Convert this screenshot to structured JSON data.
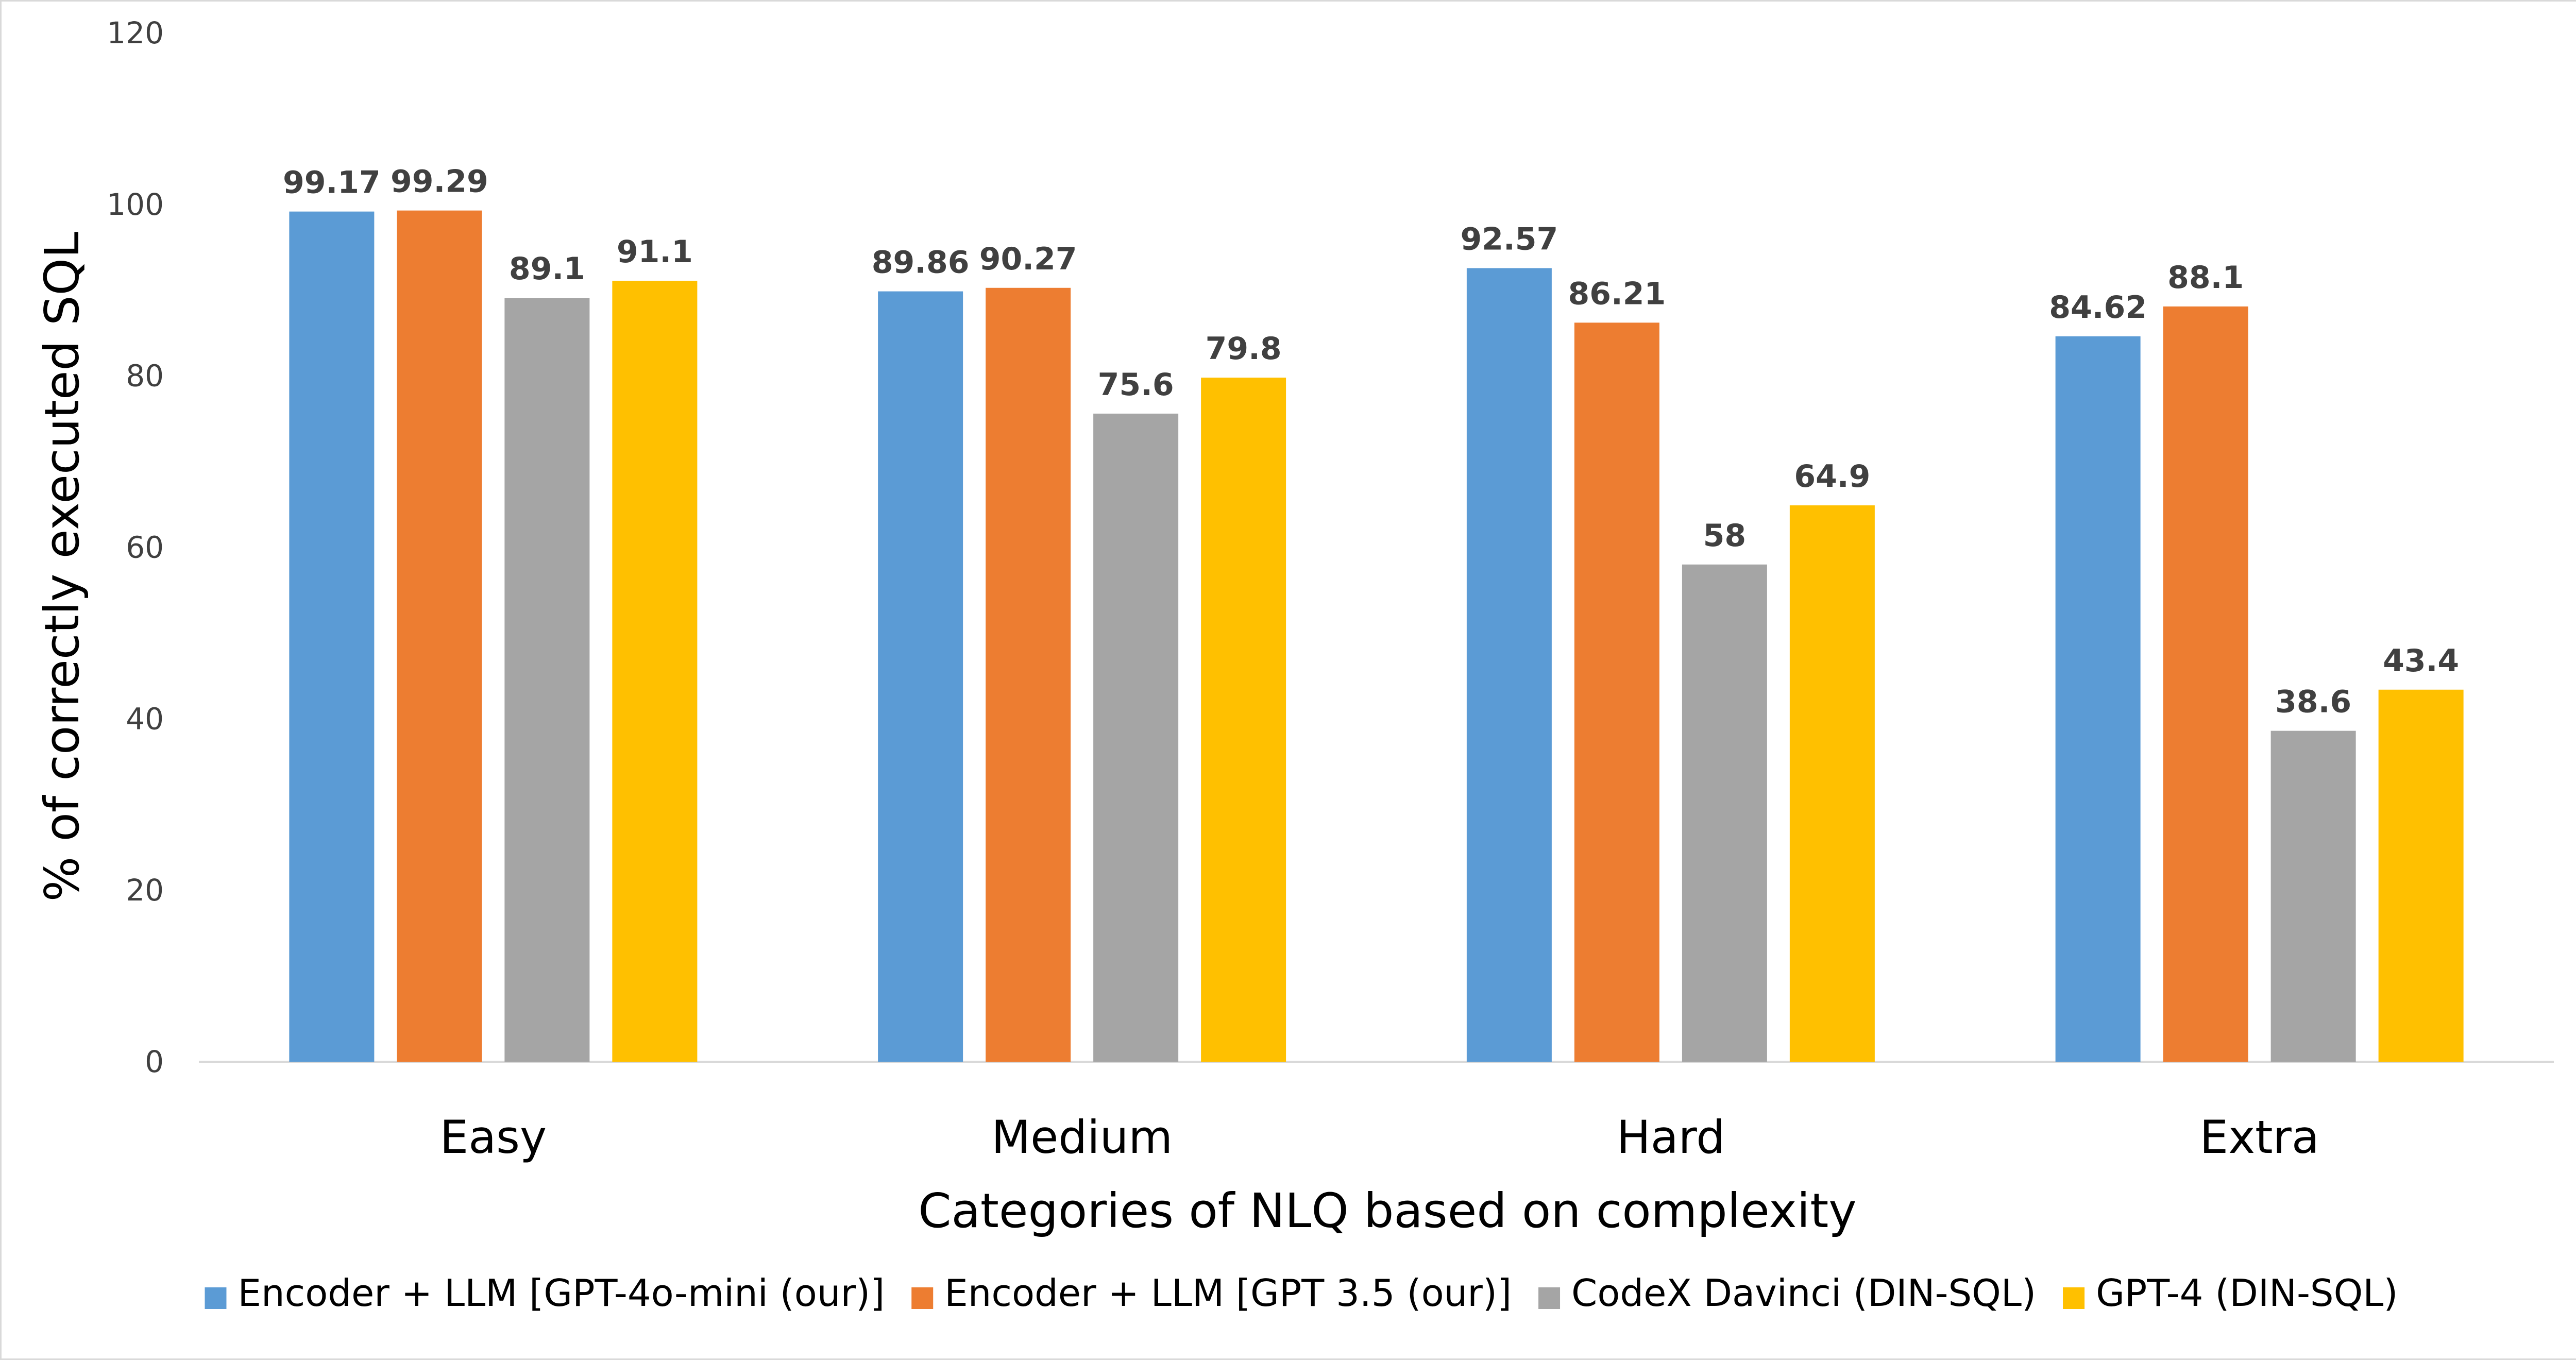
{
  "chart_data": {
    "type": "bar",
    "categories": [
      "Easy",
      "Medium",
      "Hard",
      "Extra"
    ],
    "series": [
      {
        "name": "Encoder + LLM [GPT-4o-mini (our)]",
        "color": "#5b9bd5",
        "values": [
          99.17,
          89.86,
          92.57,
          84.62
        ]
      },
      {
        "name": "Encoder + LLM [GPT 3.5 (our)]",
        "color": "#ed7d31",
        "values": [
          99.29,
          90.27,
          86.21,
          88.1
        ]
      },
      {
        "name": "CodeX Davinci (DIN-SQL)",
        "color": "#a5a5a5",
        "values": [
          89.1,
          75.6,
          58,
          38.6
        ]
      },
      {
        "name": "GPT-4 (DIN-SQL)",
        "color": "#ffc000",
        "values": [
          91.1,
          79.8,
          64.9,
          43.4
        ]
      }
    ],
    "data_labels": [
      [
        "99.17",
        "89.86",
        "92.57",
        "84.62"
      ],
      [
        "99.29",
        "90.27",
        "86.21",
        "88.1"
      ],
      [
        "89.1",
        "75.6",
        "58",
        "38.6"
      ],
      [
        "91.1",
        "79.8",
        "64.9",
        "43.4"
      ]
    ],
    "xlabel": "Categories of NLQ based on complexity",
    "ylabel": "% of correctly executed SQL",
    "ylim": [
      0,
      120
    ],
    "yticks": [
      "0",
      "20",
      "40",
      "60",
      "80",
      "100",
      "120"
    ],
    "grid": false,
    "legend_position": "bottom"
  }
}
